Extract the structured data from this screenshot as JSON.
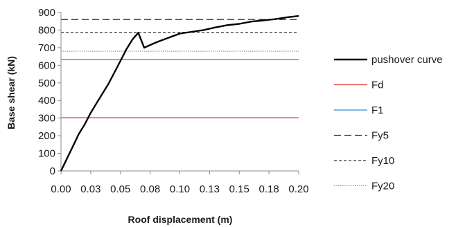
{
  "chart_data": {
    "type": "line",
    "xlabel": "Roof displacement (m)",
    "ylabel": "Base shear (kN)",
    "xlim": [
      0,
      0.2
    ],
    "ylim": [
      0,
      900
    ],
    "x_ticks": [
      "0.00",
      "0.03",
      "0.05",
      "0.08",
      "0.10",
      "0.13",
      "0.15",
      "0.18",
      "0.20"
    ],
    "y_ticks": [
      "0",
      "100",
      "200",
      "300",
      "400",
      "500",
      "600",
      "700",
      "800",
      "900"
    ],
    "grid": false,
    "legend_position": "right",
    "series": [
      {
        "name": "pushover curve",
        "color": "#000000",
        "style": "solid-thick",
        "x": [
          0,
          0.005,
          0.01,
          0.015,
          0.02,
          0.025,
          0.03,
          0.035,
          0.04,
          0.045,
          0.05,
          0.055,
          0.06,
          0.065,
          0.07,
          0.075,
          0.08,
          0.09,
          0.1,
          0.11,
          0.12,
          0.13,
          0.14,
          0.15,
          0.16,
          0.17,
          0.18,
          0.19,
          0.2
        ],
        "y": [
          0,
          70,
          140,
          210,
          265,
          330,
          385,
          440,
          495,
          560,
          625,
          690,
          745,
          785,
          700,
          715,
          730,
          755,
          780,
          790,
          800,
          815,
          828,
          835,
          848,
          855,
          862,
          872,
          880
        ]
      },
      {
        "name": "Fd",
        "color": "#e03030",
        "style": "solid",
        "value": 302
      },
      {
        "name": "F1",
        "color": "#2e8ed0",
        "style": "solid",
        "value": 632
      },
      {
        "name": "Fy5",
        "color": "#333333",
        "style": "dashed",
        "value": 860
      },
      {
        "name": "Fy10",
        "color": "#333333",
        "style": "shortdash",
        "value": 787
      },
      {
        "name": "Fy20",
        "color": "#777777",
        "style": "dotted",
        "value": 680
      }
    ]
  }
}
